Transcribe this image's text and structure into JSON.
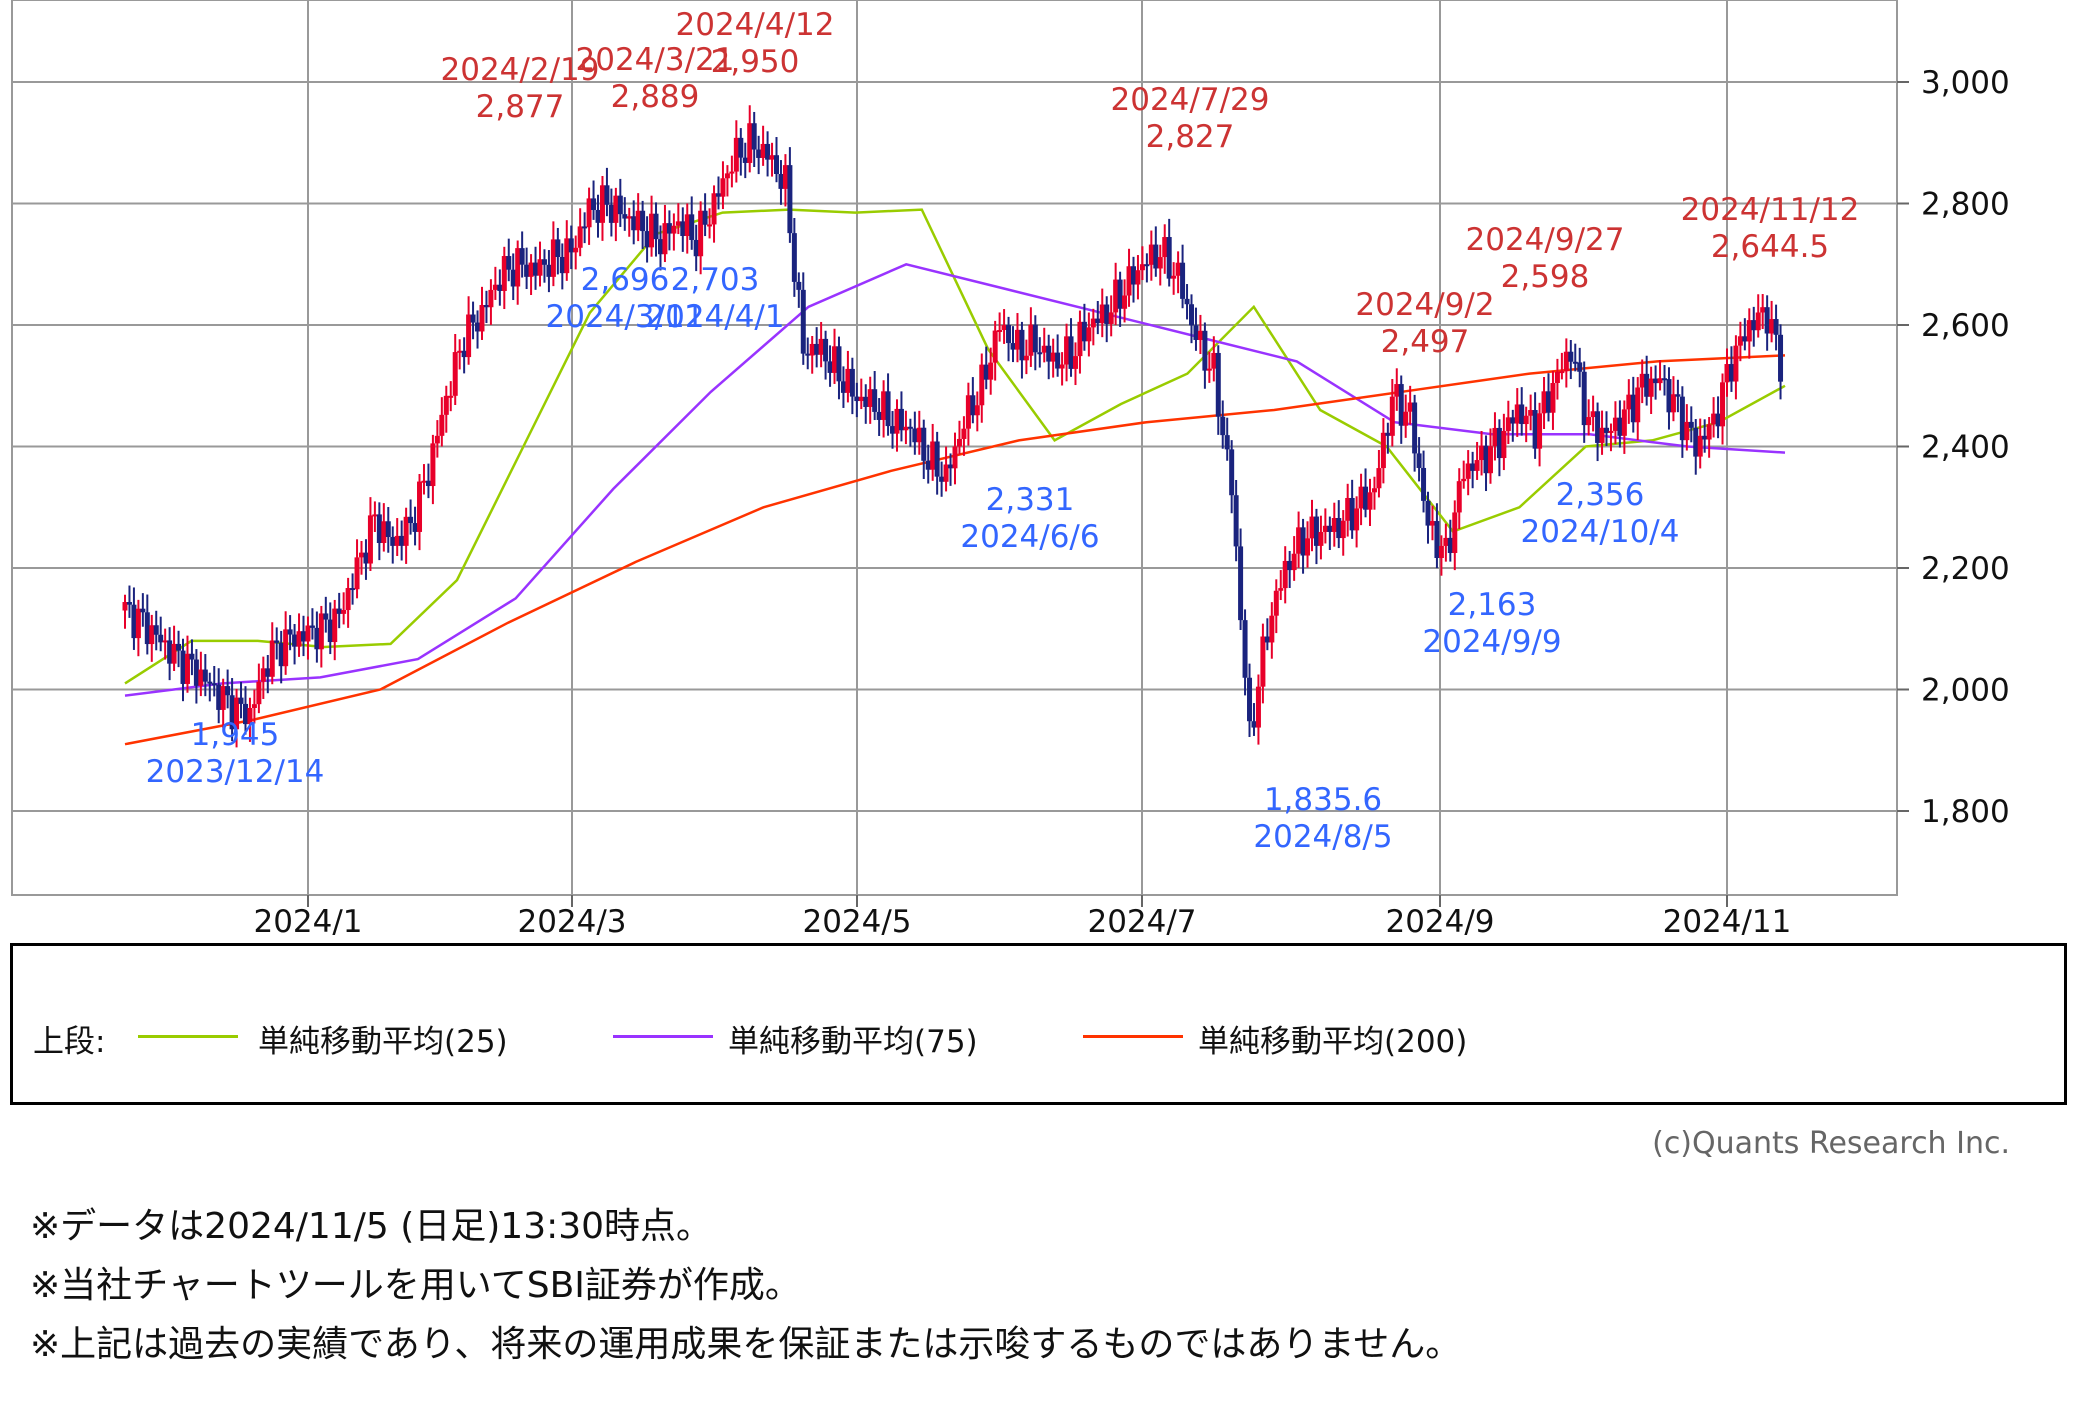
{
  "chart_data": {
    "type": "candlestick",
    "y_ticks": [
      "1,800",
      "2,000",
      "2,200",
      "2,400",
      "2,600",
      "2,800",
      "3,000"
    ],
    "ylim": [
      1655,
      3135
    ],
    "x_ticks": [
      "2024/1",
      "2024/3",
      "2024/5",
      "2024/7",
      "2024/9",
      "2024/11"
    ],
    "grid": true,
    "candles_approx_close": [
      2130,
      2110,
      2080,
      2050,
      2030,
      2000,
      1970,
      1960,
      2050,
      2080,
      2090,
      2100,
      2120,
      2200,
      2280,
      2240,
      2270,
      2360,
      2480,
      2580,
      2620,
      2680,
      2700,
      2690,
      2710,
      2720,
      2790,
      2800,
      2780,
      2760,
      2740,
      2770,
      2740,
      2800,
      2870,
      2900,
      2880,
      2830,
      2560,
      2560,
      2520,
      2480,
      2470,
      2440,
      2430,
      2380,
      2350,
      2440,
      2500,
      2600,
      2560,
      2570,
      2540,
      2550,
      2600,
      2620,
      2660,
      2700,
      2720,
      2680,
      2580,
      2520,
      2330,
      1920,
      2100,
      2200,
      2250,
      2260,
      2270,
      2300,
      2330,
      2480,
      2450,
      2270,
      2220,
      2360,
      2380,
      2410,
      2460,
      2430,
      2500,
      2560,
      2440,
      2420,
      2450,
      2500,
      2510,
      2460,
      2400,
      2440,
      2540,
      2600,
      2620,
      2510
    ],
    "series": [
      {
        "name": "単純移動平均(25)",
        "color": "#99cc00",
        "values": [
          2010,
          2080,
          2080,
          2070,
          2075,
          2180,
          2400,
          2620,
          2750,
          2785,
          2790,
          2785,
          2790,
          2560,
          2410,
          2470,
          2520,
          2630,
          2460,
          2400,
          2260,
          2300,
          2400,
          2410,
          2440,
          2500
        ]
      },
      {
        "name": "単純移動平均(75)",
        "color": "#9933ff",
        "values": [
          1990,
          2010,
          2020,
          2050,
          2150,
          2330,
          2490,
          2630,
          2700,
          2660,
          2620,
          2580,
          2540,
          2440,
          2420,
          2420,
          2400,
          2390
        ]
      },
      {
        "name": "単純移動平均(200)",
        "color": "#ff3300",
        "values": [
          1910,
          1950,
          2000,
          2110,
          2210,
          2300,
          2360,
          2410,
          2440,
          2460,
          2490,
          2520,
          2540,
          2550
        ]
      }
    ],
    "annotations_high": [
      {
        "date": "2024/2/19",
        "value": "2,877"
      },
      {
        "date": "2024/3/21",
        "value": "2,889"
      },
      {
        "date": "2024/4/12",
        "value": "2,950"
      },
      {
        "date": "2024/7/29",
        "value": "2,827"
      },
      {
        "date": "2024/9/2",
        "value": "2,497"
      },
      {
        "date": "2024/9/27",
        "value": "2,598"
      },
      {
        "date": "2024/11/12",
        "value": "2,644.5"
      }
    ],
    "annotations_low": [
      {
        "date": "2023/12/14",
        "value": "1,945"
      },
      {
        "date": "2024/3/11",
        "value": "2,696"
      },
      {
        "date": "2024/4/1",
        "value": "2,703"
      },
      {
        "date": "2024/6/6",
        "value": "2,331"
      },
      {
        "date": "2024/8/5",
        "value": "1,835.6"
      },
      {
        "date": "2024/9/9",
        "value": "2,163"
      },
      {
        "date": "2024/10/4",
        "value": "2,356"
      }
    ],
    "colors": {
      "up": "#e8002a",
      "down": "#1a237e",
      "high_label": "#cc3333",
      "low_label": "#3366ff",
      "grid": "#999999"
    }
  },
  "legend": {
    "prefix": "上段:",
    "items": [
      {
        "label": "単純移動平均(25)",
        "color": "#99cc00"
      },
      {
        "label": "単純移動平均(75)",
        "color": "#9933ff"
      },
      {
        "label": "単純移動平均(200)",
        "color": "#ff3300"
      }
    ]
  },
  "copyright": "(c)Quants Research Inc.",
  "notes": [
    "※データは2024/11/5 (日足)13:30時点。",
    "※当社チャートツールを用いてSBI証券が作成。",
    "※上記は過去の実績であり、将来の運用成果を保証または示唆するものではありません。"
  ]
}
